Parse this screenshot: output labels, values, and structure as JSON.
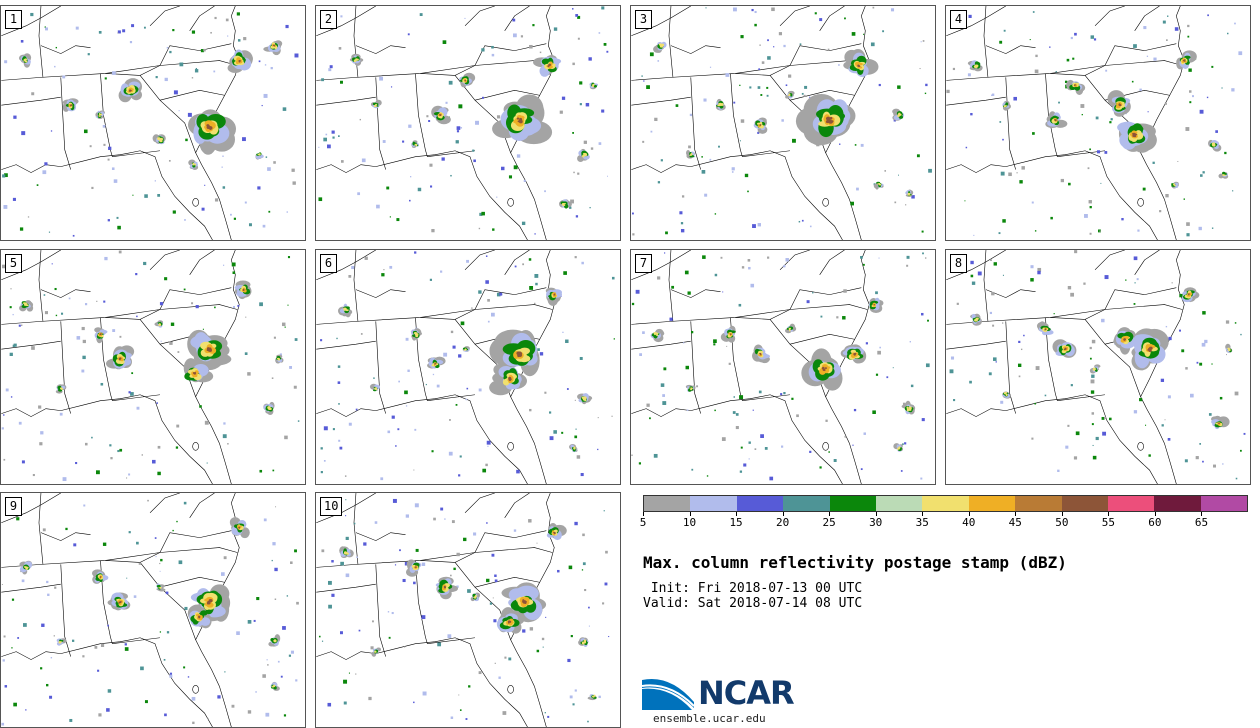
{
  "panels": [
    {
      "label": "1",
      "storms": [
        [
          210,
          122,
          1.4
        ],
        [
          240,
          55,
          0.8
        ],
        [
          130,
          85,
          0.8
        ],
        [
          70,
          100,
          0.5
        ],
        [
          25,
          55,
          0.4
        ],
        [
          160,
          135,
          0.4
        ],
        [
          275,
          40,
          0.5
        ],
        [
          195,
          160,
          0.3
        ],
        [
          100,
          110,
          0.3
        ],
        [
          260,
          150,
          0.3
        ]
      ]
    },
    {
      "label": "2",
      "storms": [
        [
          205,
          115,
          1.5
        ],
        [
          235,
          60,
          0.8
        ],
        [
          125,
          110,
          0.6
        ],
        [
          150,
          75,
          0.5
        ],
        [
          40,
          55,
          0.4
        ],
        [
          270,
          150,
          0.4
        ],
        [
          100,
          140,
          0.3
        ],
        [
          250,
          200,
          0.4
        ],
        [
          60,
          100,
          0.3
        ],
        [
          280,
          80,
          0.3
        ]
      ]
    },
    {
      "label": "3",
      "storms": [
        [
          200,
          115,
          1.6
        ],
        [
          230,
          60,
          0.9
        ],
        [
          130,
          120,
          0.5
        ],
        [
          90,
          100,
          0.4
        ],
        [
          30,
          40,
          0.4
        ],
        [
          270,
          110,
          0.4
        ],
        [
          250,
          180,
          0.3
        ],
        [
          160,
          90,
          0.3
        ],
        [
          60,
          150,
          0.3
        ],
        [
          280,
          190,
          0.3
        ]
      ]
    },
    {
      "label": "4",
      "storms": [
        [
          190,
          130,
          1.1
        ],
        [
          175,
          100,
          0.8
        ],
        [
          110,
          115,
          0.6
        ],
        [
          130,
          80,
          0.5
        ],
        [
          240,
          55,
          0.6
        ],
        [
          270,
          140,
          0.4
        ],
        [
          30,
          60,
          0.4
        ],
        [
          60,
          100,
          0.3
        ],
        [
          230,
          180,
          0.3
        ],
        [
          280,
          170,
          0.3
        ]
      ]
    },
    {
      "label": "5",
      "storms": [
        [
          210,
          100,
          1.3
        ],
        [
          195,
          125,
          0.9
        ],
        [
          120,
          110,
          0.8
        ],
        [
          100,
          85,
          0.5
        ],
        [
          245,
          40,
          0.6
        ],
        [
          270,
          160,
          0.4
        ],
        [
          25,
          55,
          0.4
        ],
        [
          160,
          75,
          0.3
        ],
        [
          60,
          140,
          0.3
        ],
        [
          280,
          110,
          0.3
        ]
      ]
    },
    {
      "label": "6",
      "storms": [
        [
          205,
          105,
          1.5
        ],
        [
          195,
          130,
          1.0
        ],
        [
          120,
          115,
          0.5
        ],
        [
          100,
          85,
          0.4
        ],
        [
          240,
          45,
          0.6
        ],
        [
          270,
          150,
          0.4
        ],
        [
          30,
          60,
          0.4
        ],
        [
          150,
          100,
          0.3
        ],
        [
          260,
          200,
          0.3
        ],
        [
          60,
          140,
          0.3
        ]
      ]
    },
    {
      "label": "7",
      "storms": [
        [
          195,
          120,
          1.2
        ],
        [
          225,
          105,
          0.8
        ],
        [
          130,
          105,
          0.6
        ],
        [
          100,
          85,
          0.5
        ],
        [
          245,
          55,
          0.5
        ],
        [
          280,
          160,
          0.4
        ],
        [
          25,
          85,
          0.4
        ],
        [
          160,
          80,
          0.3
        ],
        [
          60,
          140,
          0.3
        ],
        [
          270,
          200,
          0.3
        ]
      ]
    },
    {
      "label": "8",
      "storms": [
        [
          205,
          100,
          1.3
        ],
        [
          180,
          90,
          0.8
        ],
        [
          120,
          100,
          0.7
        ],
        [
          100,
          80,
          0.5
        ],
        [
          245,
          45,
          0.6
        ],
        [
          275,
          175,
          0.5
        ],
        [
          30,
          70,
          0.4
        ],
        [
          150,
          120,
          0.3
        ],
        [
          60,
          145,
          0.3
        ],
        [
          285,
          100,
          0.3
        ]
      ]
    },
    {
      "label": "9",
      "storms": [
        [
          210,
          110,
          1.3
        ],
        [
          200,
          125,
          0.8
        ],
        [
          120,
          110,
          0.7
        ],
        [
          100,
          85,
          0.5
        ],
        [
          240,
          35,
          0.6
        ],
        [
          275,
          150,
          0.4
        ],
        [
          25,
          75,
          0.4
        ],
        [
          160,
          95,
          0.3
        ],
        [
          60,
          150,
          0.3
        ],
        [
          275,
          195,
          0.3
        ]
      ]
    },
    {
      "label": "10",
      "storms": [
        [
          210,
          110,
          1.3
        ],
        [
          195,
          130,
          0.9
        ],
        [
          130,
          95,
          0.7
        ],
        [
          100,
          75,
          0.5
        ],
        [
          240,
          40,
          0.6
        ],
        [
          270,
          150,
          0.4
        ],
        [
          30,
          60,
          0.4
        ],
        [
          160,
          105,
          0.3
        ],
        [
          60,
          160,
          0.3
        ],
        [
          280,
          205,
          0.3
        ]
      ]
    }
  ],
  "colorbar": {
    "colors": [
      "#a4a4a4",
      "#b1bcec",
      "#575bd7",
      "#4e9496",
      "#0b870b",
      "#bbdbb6",
      "#f1e06e",
      "#efaf25",
      "#b97b35",
      "#8d5538",
      "#ec4f7b",
      "#6f1a3c",
      "#b14aa4"
    ],
    "ticks": [
      "5",
      "10",
      "15",
      "20",
      "25",
      "30",
      "35",
      "40",
      "45",
      "50",
      "55",
      "60",
      "65"
    ]
  },
  "title": "Max. column reflectivity postage stamp (dBZ)",
  "init_line": " Init: Fri 2018-07-13 00 UTC",
  "valid_line": "Valid: Sat 2018-07-14 08 UTC",
  "logo": {
    "text": "NCAR",
    "url_text": "ensemble.ucar.edu",
    "brand_color": "#123a6b",
    "accent_color": "#0072bc"
  }
}
